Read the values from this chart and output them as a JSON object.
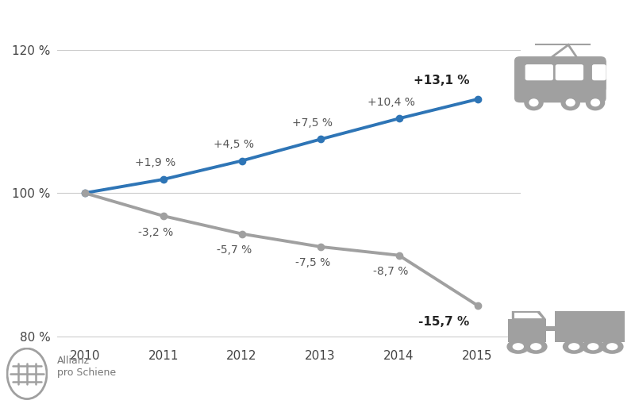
{
  "years": [
    2010,
    2011,
    2012,
    2013,
    2014,
    2015
  ],
  "schiene_values": [
    100,
    101.9,
    104.5,
    107.5,
    110.4,
    113.1
  ],
  "lkw_values": [
    100,
    96.8,
    94.3,
    92.5,
    91.3,
    84.3
  ],
  "schiene_labels": [
    "",
    "+1,9 %",
    "+4,5 %",
    "+7,5 %",
    "+10,4 %",
    "+13,1 %"
  ],
  "lkw_labels": [
    "",
    "-3,2 %",
    "-5,7 %",
    "-7,5 %",
    "-8,7 %",
    "-15,7 %"
  ],
  "schiene_color": "#2E75B6",
  "lkw_color": "#A0A0A0",
  "icon_color": "#A0A0A0",
  "line_width": 2.8,
  "marker_size": 6,
  "ylim": [
    79,
    123
  ],
  "yticks": [
    80,
    100,
    120
  ],
  "ytick_labels": [
    "80 %",
    "100 %",
    "120 %"
  ],
  "grid_color": "#CCCCCC",
  "background_color": "#FFFFFF",
  "label_fontsize": 10,
  "tick_fontsize": 11,
  "text_color": "#555555"
}
